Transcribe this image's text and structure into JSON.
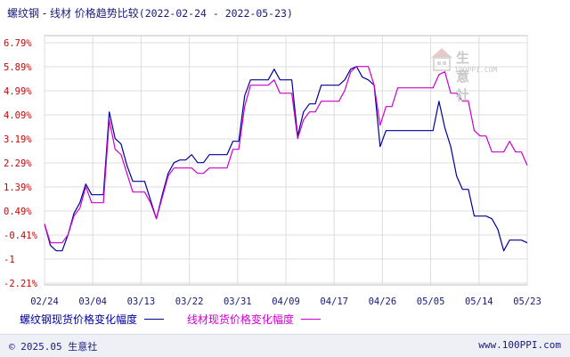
{
  "chart_data": {
    "type": "line",
    "title": "螺纹钢 - 线材 价格趋势比较",
    "date_range": "(2022-02-24 - 2022-05-23)",
    "x_tick_labels": [
      "02/24",
      "03/04",
      "03/13",
      "03/22",
      "03/31",
      "04/09",
      "04/17",
      "04/26",
      "05/05",
      "05/14",
      "05/23"
    ],
    "y_tick_labels": [
      "6.79%",
      "5.89%",
      "4.99%",
      "4.09%",
      "3.19%",
      "2.29%",
      "1.39%",
      "0.49%",
      "-0.41%",
      "-1",
      "-2.21%"
    ],
    "ylim": [
      -2.21,
      6.79
    ],
    "grid": true,
    "legend_position": "bottom",
    "series": [
      {
        "name": "螺纹钢现货价格变化幅度",
        "color": "#000099",
        "values": [
          0.0,
          -0.8,
          -1.0,
          -1.0,
          -0.4,
          0.4,
          0.8,
          1.5,
          1.1,
          1.1,
          1.1,
          4.2,
          3.2,
          3.0,
          2.2,
          1.6,
          1.6,
          1.6,
          0.9,
          0.2,
          1.1,
          1.9,
          2.3,
          2.4,
          2.4,
          2.6,
          2.3,
          2.3,
          2.6,
          2.6,
          2.6,
          2.6,
          3.1,
          3.1,
          4.8,
          5.4,
          5.4,
          5.4,
          5.4,
          5.8,
          5.4,
          5.4,
          5.4,
          3.3,
          4.2,
          4.5,
          4.5,
          5.2,
          5.2,
          5.2,
          5.2,
          5.4,
          5.8,
          5.9,
          5.5,
          5.4,
          5.2,
          2.9,
          3.5,
          3.5,
          3.5,
          3.5,
          3.5,
          3.5,
          3.5,
          3.5,
          3.5,
          4.6,
          3.6,
          2.9,
          1.8,
          1.3,
          1.3,
          0.3,
          0.3,
          0.3,
          0.2,
          -0.2,
          -1.0,
          -0.6,
          -0.6,
          -0.6,
          -0.7
        ]
      },
      {
        "name": "线材现货价格变化幅度",
        "color": "#cc00cc",
        "values": [
          0.0,
          -0.7,
          -0.7,
          -0.7,
          -0.4,
          0.3,
          0.6,
          1.4,
          0.8,
          0.8,
          0.8,
          3.9,
          2.8,
          2.6,
          1.9,
          1.2,
          1.2,
          1.2,
          0.8,
          0.2,
          1.0,
          1.8,
          2.1,
          2.1,
          2.1,
          2.1,
          1.9,
          1.9,
          2.1,
          2.1,
          2.1,
          2.1,
          2.8,
          2.8,
          4.4,
          5.2,
          5.2,
          5.2,
          5.2,
          5.4,
          4.9,
          4.9,
          4.9,
          3.2,
          3.9,
          4.2,
          4.2,
          4.6,
          4.6,
          4.6,
          4.6,
          5.0,
          5.7,
          5.9,
          5.9,
          5.9,
          5.2,
          3.7,
          4.4,
          4.4,
          5.1,
          5.1,
          5.1,
          5.1,
          5.1,
          5.1,
          5.1,
          5.6,
          5.7,
          4.9,
          4.9,
          4.6,
          4.6,
          3.5,
          3.3,
          3.3,
          2.7,
          2.7,
          2.7,
          3.1,
          2.7,
          2.7,
          2.2
        ]
      }
    ]
  },
  "footer": {
    "copyright": "© 2025.05 生意社",
    "website": "www.100PPI.com"
  },
  "watermark": {
    "name": "生意社",
    "url": "100PPI.COM"
  }
}
